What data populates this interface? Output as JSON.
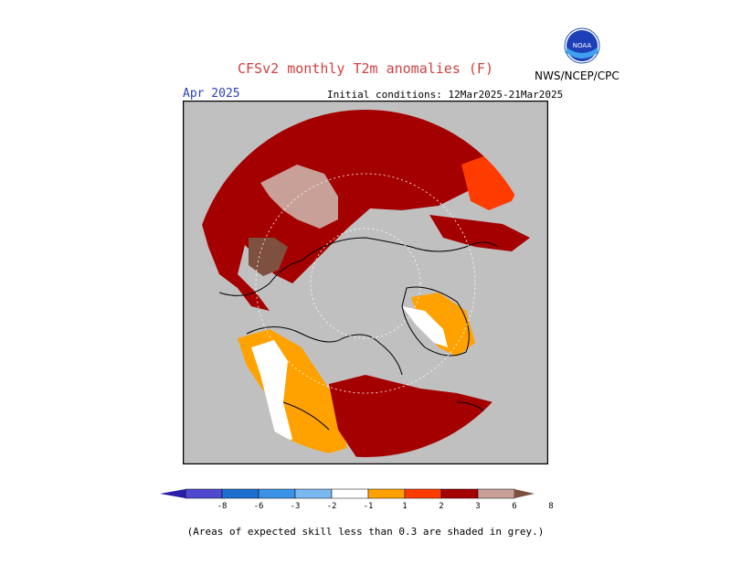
{
  "header": {
    "title": "CFSv2 monthly T2m anomalies (F)",
    "agency": "NWS/NCEP/CPC",
    "logo_text": "NOAA",
    "month": "Apr 2025",
    "initial_conditions": "Initial conditions: 12Mar2025-21Mar2025"
  },
  "colorbar": {
    "labels": [
      "-8",
      "-6",
      "-3",
      "-2",
      "-1",
      "1",
      "2",
      "3",
      "6",
      "8"
    ],
    "colors": [
      "#2a1ea8",
      "#4e49cf",
      "#1f6fd0",
      "#3a93e6",
      "#7ab8f2",
      "#ffffff",
      "#ffa200",
      "#ff3c00",
      "#a50000",
      "#c8a098",
      "#7d5040"
    ]
  },
  "map_colors": {
    "ocean_grey": "#c0c0c0",
    "dark_red": "#a50000",
    "red": "#ff3c00",
    "orange": "#ffa200",
    "pink": "#c8a098",
    "brown": "#7d5040",
    "white": "#ffffff"
  },
  "footnote": "(Areas of expected skill less than 0.3 are shaded in grey.)"
}
